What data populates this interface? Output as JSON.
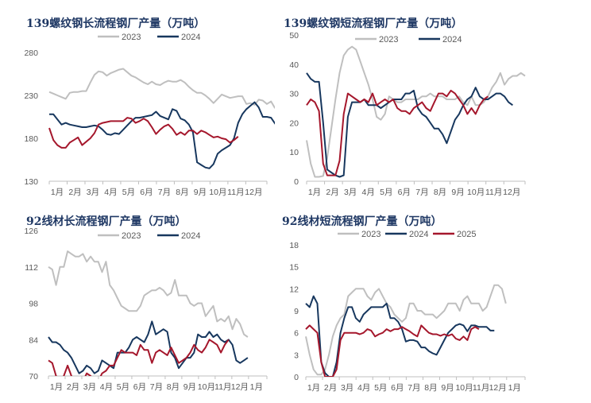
{
  "chart_data": [
    {
      "type": "line",
      "title": "139螺纹钢长流程钢厂产量（万吨）",
      "ylim": [
        130,
        280
      ],
      "yticks": [
        130,
        180,
        230,
        280
      ],
      "xticks": [
        "1月",
        "2月",
        "3月",
        "4月",
        "5月",
        "6月",
        "7月",
        "8月",
        "9月",
        "10月",
        "11月",
        "12月"
      ],
      "series": [
        {
          "name": "2023",
          "color": "#bfbfbf",
          "legend": true,
          "values": [
            234,
            232,
            230,
            228,
            226,
            233,
            234,
            234,
            235,
            235,
            245,
            254,
            258,
            257,
            253,
            256,
            258,
            260,
            261,
            257,
            253,
            251,
            248,
            245,
            243,
            246,
            243,
            242,
            245,
            247,
            246,
            246,
            248,
            245,
            240,
            236,
            233,
            233,
            230,
            226,
            221,
            226,
            231,
            229,
            227,
            228,
            229,
            229,
            220,
            221,
            219,
            225,
            224,
            220,
            223,
            215
          ]
        },
        {
          "name": "2024",
          "color": "#17375e",
          "legend": true,
          "values": [
            208,
            208,
            202,
            196,
            198,
            196,
            195,
            194,
            193,
            193,
            194,
            195,
            194,
            190,
            185,
            184,
            186,
            185,
            190,
            195,
            200,
            204,
            204,
            205,
            206,
            207,
            211,
            206,
            204,
            202,
            214,
            212,
            203,
            201,
            196,
            187,
            152,
            149,
            146,
            145,
            150,
            162,
            166,
            169,
            172,
            180,
            198,
            208,
            214,
            218,
            222,
            216,
            205,
            205,
            204,
            197,
            192,
            191,
            193,
            192
          ]
        },
        {
          "color": "#a5172c",
          "legend": false,
          "values": [
            192,
            178,
            172,
            169,
            169,
            175,
            178,
            181,
            172,
            176,
            180,
            186,
            196,
            198,
            199,
            200,
            200,
            200,
            200,
            204,
            203,
            198,
            200,
            203,
            200,
            193,
            185,
            190,
            194,
            196,
            191,
            184,
            187,
            184,
            189,
            189,
            185,
            189,
            187,
            184,
            181,
            182,
            180,
            179,
            175,
            178,
            182
          ]
        }
      ]
    },
    {
      "type": "line",
      "title": "139螺纹钢短流程钢厂产量（万吨）",
      "ylim": [
        0,
        50
      ],
      "yticks": [
        0,
        10,
        20,
        30,
        40,
        50
      ],
      "xticks": [
        "1月",
        "2月",
        "3月",
        "4月",
        "5月",
        "6月",
        "7月",
        "8月",
        "9月",
        "10月",
        "11月",
        "12月"
      ],
      "series": [
        {
          "name": "2023",
          "color": "#bfbfbf",
          "legend": true,
          "values": [
            14,
            6,
            1.5,
            1.5,
            1.8,
            8,
            18,
            28,
            37,
            43,
            45,
            46,
            45,
            41,
            37,
            33,
            28,
            22,
            21,
            23,
            29,
            28,
            27,
            27,
            28,
            28,
            28,
            28,
            29,
            29,
            30,
            29,
            29,
            29,
            28,
            28,
            28,
            29,
            27,
            26,
            29,
            26,
            26,
            27,
            29,
            32,
            34,
            37,
            33,
            35,
            36,
            36,
            37,
            36
          ]
        },
        {
          "name": "2024",
          "color": "#17375e",
          "legend": true,
          "values": [
            37,
            35,
            34,
            34,
            20,
            4,
            3,
            2,
            1.5,
            2,
            22,
            27,
            27,
            27,
            28,
            26,
            26,
            26,
            25,
            26,
            27,
            28,
            28,
            28,
            30,
            30,
            31,
            25,
            23,
            22,
            20,
            18,
            18,
            16,
            13,
            17,
            21,
            23,
            26,
            28,
            29,
            32,
            29,
            28,
            28,
            29,
            30,
            30,
            29,
            27,
            26
          ]
        },
        {
          "color": "#a5172c",
          "legend": false,
          "values": [
            26,
            28,
            27,
            24,
            6,
            2,
            2,
            2,
            7,
            23,
            30,
            29,
            28,
            27,
            28,
            27,
            30,
            26,
            27,
            28,
            27,
            28,
            25,
            24,
            24,
            23,
            25,
            26,
            27,
            25,
            24,
            27,
            30,
            30,
            29,
            31,
            30,
            28,
            26,
            23,
            25,
            23,
            26,
            28,
            29
          ]
        }
      ]
    },
    {
      "type": "line",
      "title": "92线材长流程钢厂产量（万吨）",
      "ylim": [
        70,
        126
      ],
      "yticks": [
        70,
        84,
        98,
        112,
        126
      ],
      "xticks": [
        "1月",
        "2月",
        "3月",
        "4月",
        "5月",
        "6月",
        "7月",
        "8月",
        "9月",
        "10月",
        "11月",
        "12月",
        "1月"
      ],
      "series": [
        {
          "name": "2023",
          "color": "#bfbfbf",
          "legend": true,
          "values": [
            112,
            111,
            105,
            112,
            112,
            118,
            117,
            116,
            116,
            117,
            114,
            116,
            114,
            114,
            110,
            114,
            105,
            103,
            100,
            97,
            96,
            95,
            95,
            95,
            97,
            101,
            102,
            103,
            103,
            104,
            103,
            101,
            102,
            107,
            101,
            101,
            101,
            98,
            97,
            98,
            98,
            93,
            95,
            97,
            91,
            92,
            91,
            93,
            88,
            92,
            90,
            86,
            85
          ]
        },
        {
          "name": "2024",
          "color": "#17375e",
          "legend": true,
          "values": [
            85,
            83,
            83,
            82,
            80,
            79,
            77,
            74,
            71,
            72,
            74,
            73,
            71,
            72,
            76,
            75,
            74,
            73,
            79,
            79,
            79,
            81,
            84,
            85,
            84,
            83,
            86,
            91,
            86,
            87,
            88,
            87,
            79,
            77,
            73,
            75,
            77,
            77,
            79,
            86,
            85,
            85,
            87,
            85,
            86,
            84,
            83,
            84,
            82,
            76,
            75,
            76,
            77
          ]
        },
        {
          "color": "#a5172c",
          "legend": false,
          "values": [
            76,
            75,
            70,
            65,
            70,
            74,
            70,
            68,
            66,
            68,
            71,
            70,
            68,
            66,
            71,
            72,
            74,
            74,
            77,
            80,
            79,
            79,
            79,
            78,
            82,
            80,
            80,
            75,
            79,
            80,
            79,
            78,
            81,
            78,
            75,
            76,
            77,
            79,
            82,
            80,
            79,
            81,
            84,
            83,
            82,
            79,
            82,
            84
          ]
        }
      ]
    },
    {
      "type": "line",
      "title": "92线材短流程钢厂产量（万吨）",
      "ylim": [
        0,
        18
      ],
      "yticks": [
        0,
        3,
        6,
        9,
        12,
        15,
        18
      ],
      "xticks": [
        "1月",
        "2月",
        "3月",
        "4月",
        "5月",
        "6月",
        "7月",
        "8月",
        "9月",
        "10月",
        "11月",
        "12月",
        "1月"
      ],
      "series": [
        {
          "name": "2023",
          "color": "#bfbfbf",
          "legend": true,
          "values": [
            5.5,
            3,
            1,
            0.3,
            0.3,
            1,
            3,
            5.5,
            7,
            8,
            8.5,
            11,
            11.5,
            12,
            12,
            12,
            11,
            10.5,
            11.5,
            12,
            11,
            10,
            9.5,
            8.5,
            8,
            7.5,
            8,
            10,
            10,
            9,
            9,
            8.5,
            8.5,
            8.5,
            8,
            8.5,
            9,
            10,
            10,
            10,
            9,
            10.5,
            11,
            10,
            10,
            10,
            9,
            9.5,
            11,
            12.5,
            12.5,
            12,
            10
          ]
        },
        {
          "name": "2024",
          "color": "#17375e",
          "legend": true,
          "values": [
            10,
            9.5,
            11,
            10,
            2,
            0.5,
            0,
            0,
            2,
            6,
            8,
            9.5,
            9.5,
            8,
            7.5,
            8.5,
            9,
            9.5,
            9.5,
            9.5,
            9.5,
            10,
            8,
            8,
            7.5,
            6.5,
            4.8,
            5,
            5,
            4.8,
            4,
            4,
            3.5,
            3.2,
            3,
            4,
            5,
            6,
            6.5,
            7,
            7.2,
            7,
            6.2,
            7,
            7,
            6.8,
            6.8,
            6.8,
            6.3,
            6.3
          ]
        },
        {
          "name": "2025",
          "color": "#a5172c",
          "legend": true,
          "values": [
            6.5,
            7,
            6.5,
            6,
            2,
            0,
            0,
            0,
            1,
            5,
            6,
            6,
            6,
            6,
            5.8,
            6,
            6.5,
            6.3,
            5.5,
            5.8,
            6,
            6.5,
            6.2,
            6.5,
            6.5,
            6.8,
            6.5,
            6.2,
            5.8,
            5.5,
            7,
            6.5,
            6,
            5.8,
            5.8,
            5.6,
            5.8,
            5.6,
            5.8,
            5.2,
            5,
            5.5,
            5,
            6.5,
            6.8,
            6.5
          ]
        }
      ]
    }
  ]
}
